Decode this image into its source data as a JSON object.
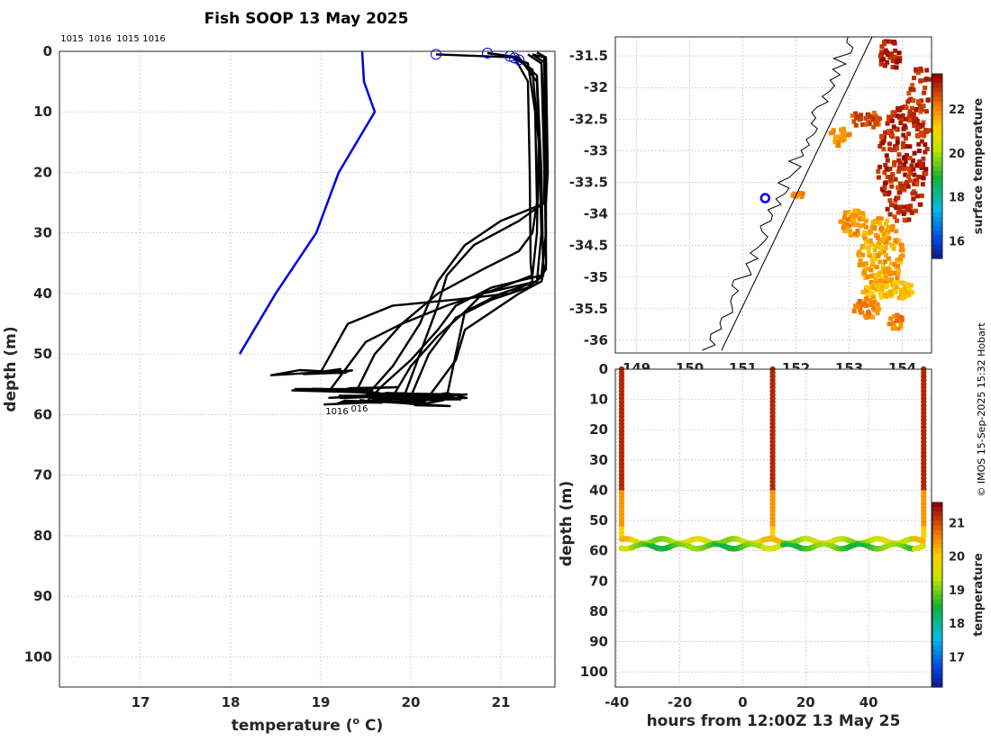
{
  "title": "Fish SOOP 13 May 2025",
  "copyright": "© IMOS 15-Sep-2025 15:32 Hobart",
  "colors": {
    "profile": "#000000",
    "climatology": "#0000e0",
    "marker": "#0000ff"
  },
  "chart_data": [
    {
      "type": "line",
      "title": "Fish SOOP 13 May 2025",
      "xlabel_prefix": "temperature (",
      "xlabel_sup": "o",
      "xlabel_suffix": " C)",
      "ylabel": "depth (m)",
      "xlim": [
        16.1,
        21.6
      ],
      "ylim": [
        105,
        0
      ],
      "xticks": [
        17,
        18,
        19,
        20,
        21
      ],
      "yticks": [
        0,
        10,
        20,
        30,
        40,
        50,
        60,
        70,
        80,
        90,
        100
      ],
      "grid": true,
      "top_labels": [
        "1015",
        "1016",
        "1015",
        "1016"
      ],
      "bottom_labels": [
        "1016",
        "016"
      ],
      "climatology": {
        "name": "climatology",
        "temp": [
          19.46,
          19.48,
          19.6,
          19.4,
          19.2,
          18.95,
          18.5,
          18.1
        ],
        "depth": [
          0,
          5,
          10,
          15,
          20,
          30,
          40,
          50
        ]
      },
      "surface_markers": {
        "temp": [
          20.28,
          20.85,
          21.1,
          21.15,
          21.2
        ],
        "depth": [
          0.5,
          0.3,
          0.8,
          1.1,
          1.4
        ]
      },
      "series": [
        {
          "name": "profile-1",
          "temp": [
            20.28,
            21.15,
            21.3,
            21.32,
            21.33,
            21.35,
            21.1,
            20.5,
            19.8,
            19.3,
            19.0
          ],
          "depth": [
            0.5,
            1,
            5,
            20,
            35,
            38,
            40,
            41,
            42,
            45,
            53
          ]
        },
        {
          "name": "profile-2",
          "temp": [
            20.85,
            21.2,
            21.4,
            21.42,
            21.4,
            21.35,
            21.0,
            20.4,
            19.9,
            19.5,
            19.3,
            19.1
          ],
          "depth": [
            0.3,
            1,
            5,
            15,
            30,
            37,
            39,
            42,
            45,
            48,
            52,
            56
          ]
        },
        {
          "name": "profile-3",
          "temp": [
            21.1,
            21.3,
            21.38,
            21.4,
            21.35,
            21.2,
            20.8,
            20.3,
            19.9,
            19.6,
            19.4
          ],
          "depth": [
            0.8,
            2,
            10,
            25,
            30,
            33,
            36,
            40,
            45,
            50,
            56
          ]
        },
        {
          "name": "profile-4",
          "temp": [
            21.15,
            21.35,
            21.42,
            21.45,
            21.4,
            21.0,
            20.6,
            20.3,
            20.0,
            19.8
          ],
          "depth": [
            1.1,
            3,
            15,
            30,
            38,
            40,
            43,
            47,
            52,
            57
          ]
        },
        {
          "name": "profile-5",
          "temp": [
            21.2,
            21.4,
            21.45,
            21.47,
            21.3,
            20.9,
            20.5,
            20.2,
            20.0
          ],
          "depth": [
            1.4,
            4,
            20,
            37,
            39,
            41,
            44,
            50,
            57
          ]
        },
        {
          "name": "profile-6",
          "temp": [
            21.3,
            21.45,
            21.48,
            21.5,
            21.45,
            21.2,
            20.9,
            20.6,
            20.5,
            20.2
          ],
          "depth": [
            0.5,
            2,
            10,
            35,
            38,
            40,
            43,
            46,
            51,
            57
          ]
        },
        {
          "name": "profile-7",
          "temp": [
            21.35,
            21.48,
            21.5,
            21.5,
            21.4,
            21.1,
            20.8,
            20.6,
            20.4
          ],
          "depth": [
            0.5,
            1,
            15,
            36,
            38,
            39,
            40,
            43,
            57
          ]
        },
        {
          "name": "profile-8",
          "temp": [
            21.4,
            21.5,
            21.52,
            21.5,
            21.0,
            20.6,
            20.3,
            20.1,
            19.8,
            19.5
          ],
          "depth": [
            0.2,
            1,
            20,
            25,
            28,
            32,
            38,
            45,
            52,
            57
          ]
        },
        {
          "name": "profile-9",
          "temp": [
            21.35,
            21.5,
            21.48,
            21.2,
            20.7,
            20.4,
            20.3,
            20.1,
            19.9
          ],
          "depth": [
            0.5,
            2,
            25,
            28,
            32,
            37,
            42,
            50,
            58
          ]
        },
        {
          "name": "profile-10",
          "temp": [
            21.3,
            21.45,
            21.5,
            21.45,
            20.9,
            20.5,
            20.3,
            20.0,
            19.7,
            19.5
          ],
          "depth": [
            0.5,
            2,
            30,
            37,
            39,
            42,
            46,
            51,
            55,
            58
          ]
        }
      ]
    },
    {
      "type": "heatmap",
      "subtype": "map",
      "colorbar_label": "surface temperature",
      "xticks": [
        149,
        150,
        151,
        152,
        153,
        154
      ],
      "yticks": [
        -31.5,
        -32,
        -32.5,
        -33,
        -33.5,
        -34,
        -34.5,
        -35,
        -35.5,
        -36
      ],
      "xlim": [
        148.6,
        154.55
      ],
      "ylim": [
        -36.2,
        -31.2
      ],
      "colorbar_ticks": [
        16,
        18,
        20,
        22
      ],
      "colorbar_range": [
        15.2,
        23.6
      ],
      "vessel_position": {
        "lon": 151.42,
        "lat": -33.75
      }
    },
    {
      "type": "scatter",
      "xlabel": "hours from 12:00Z 13 May 25",
      "ylabel": "depth (m)",
      "xlim": [
        -40.5,
        60
      ],
      "ylim": [
        105,
        0
      ],
      "xticks": [
        -40,
        -20,
        0,
        20,
        40
      ],
      "yticks": [
        0,
        10,
        20,
        30,
        40,
        50,
        60,
        70,
        80,
        90,
        100
      ],
      "colorbar_label": "temperature",
      "colorbar_ticks": [
        17,
        18,
        19,
        20,
        21
      ],
      "colorbar_range": [
        16.1,
        21.6
      ],
      "profile_hours": [
        -38.5,
        9.5,
        57.5
      ]
    }
  ]
}
